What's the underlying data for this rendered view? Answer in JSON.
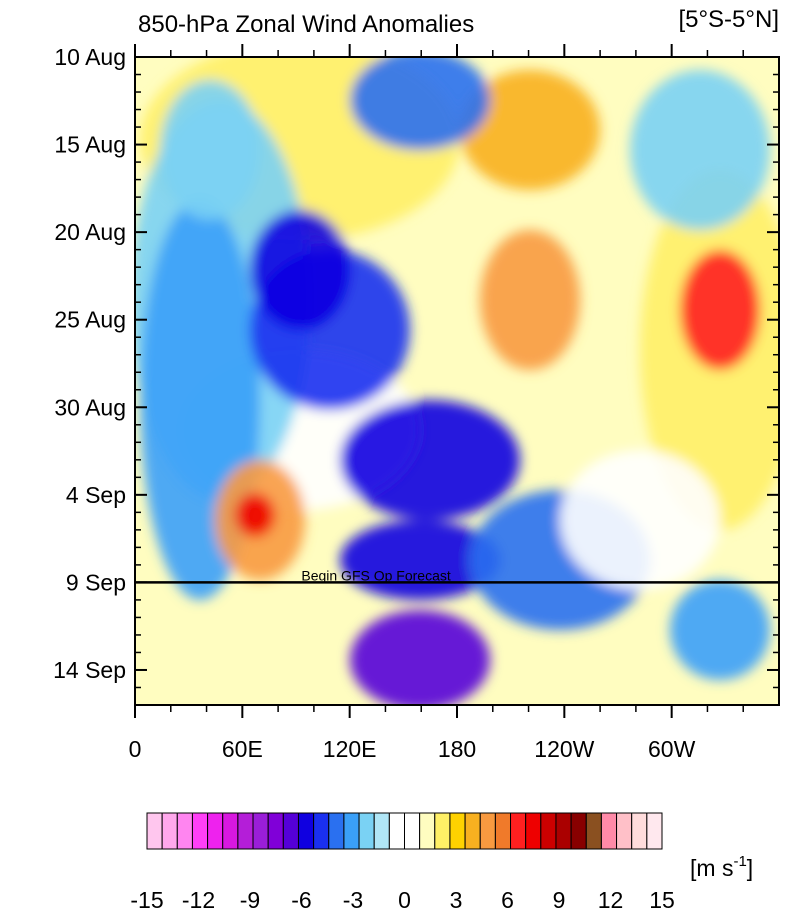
{
  "chart_data": {
    "type": "heatmap",
    "title": "850-hPa Zonal Wind Anomalies",
    "region": "[5°S-5°N]",
    "xlabel": "",
    "ylabel": "",
    "x_tick_labels": [
      "0",
      "60E",
      "120E",
      "180",
      "120W",
      "60W"
    ],
    "x_tick_lon": [
      0,
      60,
      120,
      180,
      240,
      300
    ],
    "xlim": [
      0,
      360
    ],
    "y_tick_labels": [
      "10 Aug",
      "15 Aug",
      "20 Aug",
      "25 Aug",
      "30 Aug",
      "4 Sep",
      "9 Sep",
      "14 Sep"
    ],
    "y_tick_day": [
      0,
      5,
      10,
      15,
      20,
      25,
      30,
      35
    ],
    "ylim_days": [
      0,
      37
    ],
    "forecast_line_day": 30,
    "forecast_annotation": "Begin GFS Op Forecast",
    "units": "[m s-1]",
    "units_main": "[m s",
    "units_sup": "-1",
    "units_close": "]",
    "colorbar": {
      "levels": [
        -15,
        -14,
        -13,
        -12,
        -11,
        -10,
        -9,
        -8,
        -7,
        -6,
        -5,
        -4,
        -3,
        -2,
        -1,
        0,
        1,
        2,
        3,
        4,
        5,
        6,
        7,
        8,
        9,
        10,
        11,
        12,
        13,
        14,
        15
      ],
      "tick_labels": [
        "-15",
        "-12",
        "-9",
        "-6",
        "-3",
        "0",
        "3",
        "6",
        "9",
        "12",
        "15"
      ],
      "colors": [
        "#ffc6ee",
        "#ffa8ec",
        "#ff85f0",
        "#ff3ff7",
        "#ee22ee",
        "#d818e0",
        "#b41ed8",
        "#9a1ed8",
        "#8000d8",
        "#5500d8",
        "#1000e0",
        "#1a30f0",
        "#2a70f0",
        "#3aa0f8",
        "#7ad2f4",
        "#b0e6f6",
        "#ffffff",
        "#ffffff",
        "#fffdc0",
        "#fff066",
        "#ffd200",
        "#f8b020",
        "#f89a40",
        "#f07a2a",
        "#ff2020",
        "#ee0000",
        "#cc0000",
        "#aa0000",
        "#880000",
        "#8a5020",
        "#ff8aa8",
        "#ffc0c8",
        "#ffdcdc",
        "#ffe8ee"
      ]
    }
  }
}
